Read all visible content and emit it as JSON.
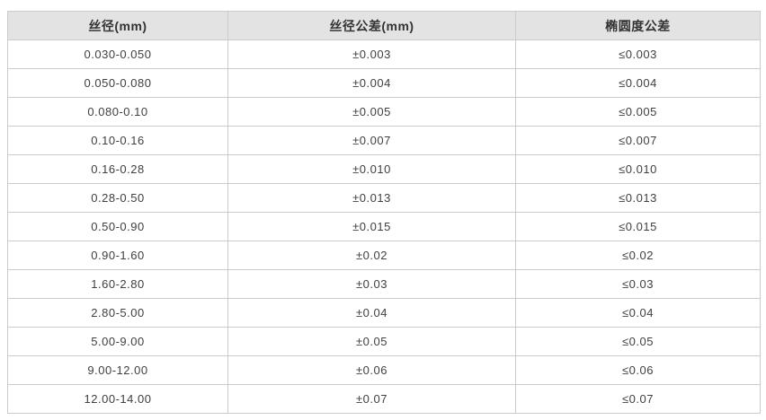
{
  "table": {
    "columns": [
      "丝径(mm)",
      "丝径公差(mm)",
      "椭圆度公差"
    ],
    "rows": [
      [
        "0.030-0.050",
        "±0.003",
        "≤0.003"
      ],
      [
        "0.050-0.080",
        "±0.004",
        "≤0.004"
      ],
      [
        "0.080-0.10",
        "±0.005",
        "≤0.005"
      ],
      [
        "0.10-0.16",
        "±0.007",
        "≤0.007"
      ],
      [
        "0.16-0.28",
        "±0.010",
        "≤0.010"
      ],
      [
        "0.28-0.50",
        "±0.013",
        "≤0.013"
      ],
      [
        "0.50-0.90",
        "±0.015",
        "≤0.015"
      ],
      [
        "0.90-1.60",
        "±0.02",
        "≤0.02"
      ],
      [
        "1.60-2.80",
        "±0.03",
        "≤0.03"
      ],
      [
        "2.80-5.00",
        "±0.04",
        "≤0.04"
      ],
      [
        "5.00-9.00",
        "±0.05",
        "≤0.05"
      ],
      [
        "9.00-12.00",
        "±0.06",
        "≤0.06"
      ],
      [
        "12.00-14.00",
        "±0.07",
        "≤0.07"
      ]
    ]
  },
  "colors": {
    "header_background": "#e3e3e3",
    "grid_border": "#cbcbcb",
    "header_text": "#333333",
    "cell_text": "#404040",
    "page_background": "#ffffff"
  }
}
